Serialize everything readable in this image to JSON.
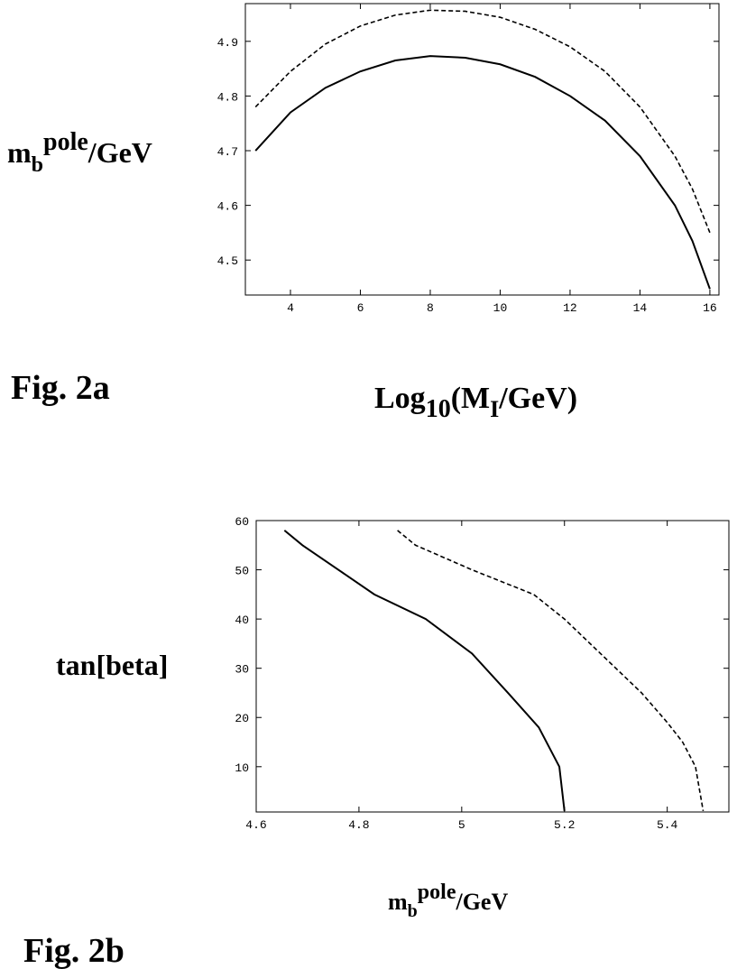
{
  "chart_data": [
    {
      "type": "line",
      "y_label": {
        "base": "m",
        "sub": "b",
        "sup": "pole",
        "rest": "/GeV"
      },
      "x_label": {
        "base": "Log",
        "sub": "10",
        "mid": "(M",
        "sub2": "I",
        "rest": "/GeV)"
      },
      "caption": "Fig. 2a",
      "x": [
        3,
        4,
        5,
        6,
        7,
        8,
        9,
        10,
        11,
        12,
        13,
        14,
        15,
        15.5,
        16
      ],
      "series": [
        {
          "color": "#000000",
          "dashed": false,
          "values": [
            4.7,
            4.77,
            4.815,
            4.845,
            4.865,
            4.873,
            4.87,
            4.858,
            4.835,
            4.8,
            4.755,
            4.69,
            4.6,
            4.535,
            4.447
          ]
        },
        {
          "color": "#000000",
          "dashed": true,
          "values": [
            4.78,
            4.845,
            4.895,
            4.928,
            4.948,
            4.957,
            4.955,
            4.944,
            4.922,
            4.89,
            4.845,
            4.78,
            4.69,
            4.63,
            4.55
          ]
        }
      ],
      "xlim": [
        2.71,
        16.26
      ],
      "xticks": [
        4,
        6,
        8,
        10,
        12,
        14,
        16
      ],
      "ylim": [
        4.436,
        4.969
      ],
      "yticks": [
        4.5,
        4.6,
        4.7,
        4.8,
        4.9
      ]
    },
    {
      "type": "line",
      "y_label": {
        "text": "tan[beta]"
      },
      "x_label": {
        "base": "m",
        "sub": "b",
        "sup": "pole",
        "rest": "/GeV"
      },
      "caption": "Fig. 2b",
      "series": [
        {
          "color": "#000000",
          "dashed": false,
          "x": [
            4.655,
            4.69,
            4.76,
            4.83,
            4.93,
            5.02,
            5.09,
            5.15,
            5.175,
            5.19,
            5.2
          ],
          "values": [
            58,
            55,
            50,
            45,
            40,
            33,
            25,
            18,
            13,
            10,
            1
          ]
        },
        {
          "color": "#000000",
          "dashed": true,
          "x": [
            4.875,
            4.91,
            5.02,
            5.14,
            5.2,
            5.27,
            5.35,
            5.4,
            5.43,
            5.455,
            5.47
          ],
          "values": [
            58,
            55,
            50,
            45,
            40,
            33,
            25,
            19,
            15,
            10,
            1
          ]
        }
      ],
      "xlim": [
        4.6,
        5.52
      ],
      "xticks": [
        4.6,
        4.8,
        5,
        5.2,
        5.4
      ],
      "ylim": [
        0.8,
        60
      ],
      "yticks": [
        10,
        20,
        30,
        40,
        50,
        60
      ]
    }
  ]
}
